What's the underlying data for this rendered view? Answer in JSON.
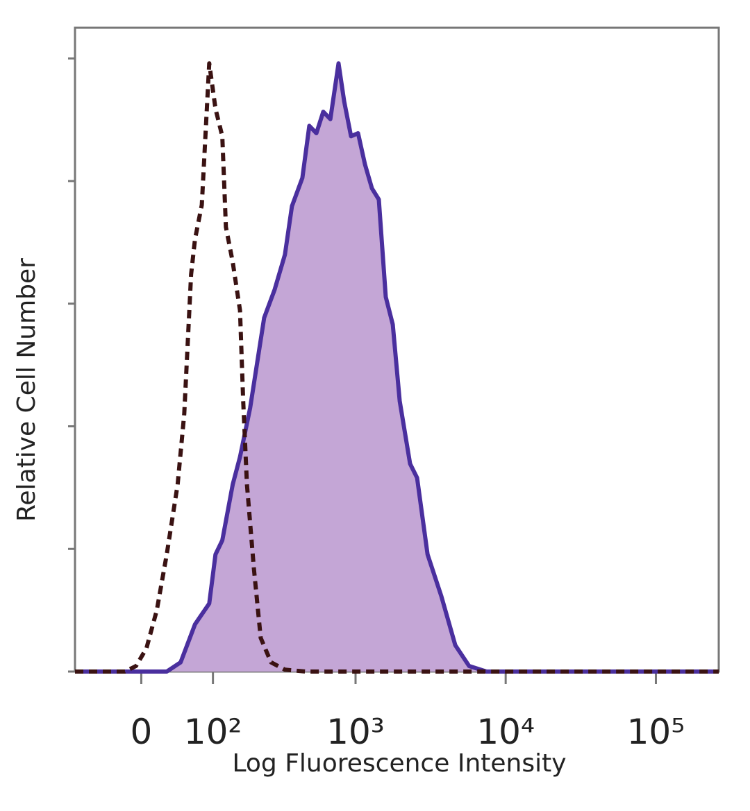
{
  "chart_data": {
    "type": "histogram-overlay",
    "xlabel": "Log Fluorescence Intensity",
    "ylabel": "Relative Cell Number",
    "xscale": "biexponential",
    "xlim": [
      -90,
      262144
    ],
    "xticks": [
      0,
      {
        "value": 100,
        "label": "10²"
      },
      {
        "value": 1000,
        "label": "10³"
      },
      {
        "value": 10000,
        "label": "10⁴"
      },
      {
        "value": 100000,
        "label": "10⁵"
      }
    ],
    "ylim": [
      0,
      105
    ],
    "yticks": [
      0,
      20,
      40,
      60,
      80,
      100
    ],
    "series": [
      {
        "color": "#4a2f9e",
        "fill": "#c4a6d6",
        "dash": false,
        "x": [
          -90,
          30,
          48,
          69,
          93,
          105,
          119,
          143,
          162,
          192,
          241,
          285,
          335,
          374,
          440,
          490,
          547,
          608,
          678,
          770,
          839,
          933,
          1039,
          1156,
          1286,
          1430,
          1590,
          1770,
          1970,
          2310,
          2570,
          3020,
          3730,
          4620,
          5710,
          7460,
          262144
        ],
        "values": [
          0,
          0,
          1.5,
          7.7,
          11.1,
          19.1,
          21.4,
          30.5,
          35,
          43,
          57.7,
          62.3,
          68,
          75.9,
          80.5,
          89,
          87.8,
          91.3,
          90.1,
          99.2,
          93,
          87.3,
          87.8,
          82.7,
          78.8,
          77,
          61.1,
          56.6,
          44.1,
          33.9,
          31.6,
          19.1,
          12.3,
          4.3,
          0.9,
          0,
          0
        ]
      },
      {
        "color": "#3a1212",
        "fill": "none",
        "dash": true,
        "x": [
          -90,
          -19,
          -6,
          6,
          18,
          30,
          44,
          53,
          63,
          69,
          80,
          93,
          105,
          119,
          127,
          143,
          162,
          171,
          182,
          204,
          228,
          269,
          335,
          465,
          262144
        ],
        "values": [
          0,
          0,
          0.9,
          3.8,
          10,
          19.1,
          30.5,
          42,
          64.8,
          70.5,
          76.1,
          99.2,
          91.8,
          87.3,
          72.5,
          66.8,
          58.9,
          44.1,
          30.5,
          16.8,
          5.5,
          1.5,
          0.3,
          0,
          0
        ]
      }
    ]
  }
}
